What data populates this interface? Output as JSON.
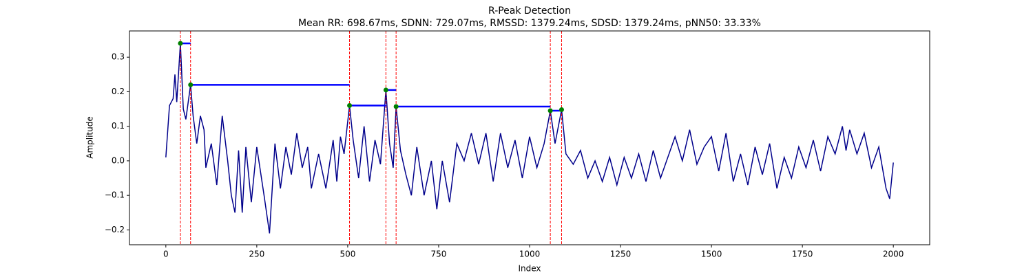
{
  "chart_data": {
    "type": "line",
    "title": "R-Peak Detection",
    "subtitle": "Mean RR: 698.67ms, SDNN: 729.07ms, RMSSD: 1379.24ms, SDSD: 1379.24ms, pNN50: 33.33%",
    "xlabel": "Index",
    "ylabel": "Amplitude",
    "xlim": [
      -100,
      2100
    ],
    "ylim": [
      -0.243,
      0.376
    ],
    "xticks": [
      0,
      250,
      500,
      750,
      1000,
      1250,
      1500,
      1750,
      2000
    ],
    "yticks": [
      {
        "value": -0.2,
        "label": "−0.2"
      },
      {
        "value": -0.1,
        "label": "−0.1"
      },
      {
        "value": 0,
        "label": "0.0"
      },
      {
        "value": 0.1,
        "label": "0.1"
      },
      {
        "value": 0.2,
        "label": "0.2"
      },
      {
        "value": 0.3,
        "label": "0.3"
      }
    ],
    "signal": {
      "color": "#00008b",
      "x": [
        0,
        10,
        20,
        25,
        30,
        40,
        48,
        55,
        68,
        75,
        85,
        95,
        105,
        110,
        125,
        140,
        155,
        170,
        180,
        190,
        200,
        210,
        220,
        235,
        250,
        270,
        285,
        300,
        315,
        330,
        345,
        360,
        375,
        390,
        400,
        420,
        440,
        460,
        470,
        480,
        490,
        505,
        515,
        530,
        545,
        560,
        575,
        590,
        605,
        615,
        625,
        633,
        645,
        660,
        675,
        690,
        710,
        730,
        745,
        760,
        780,
        800,
        820,
        840,
        860,
        880,
        900,
        920,
        940,
        960,
        980,
        1000,
        1020,
        1040,
        1057,
        1070,
        1088,
        1100,
        1120,
        1140,
        1160,
        1180,
        1200,
        1220,
        1240,
        1260,
        1280,
        1300,
        1320,
        1340,
        1360,
        1380,
        1400,
        1420,
        1440,
        1460,
        1480,
        1500,
        1520,
        1540,
        1560,
        1580,
        1600,
        1620,
        1640,
        1660,
        1680,
        1700,
        1720,
        1740,
        1760,
        1780,
        1800,
        1820,
        1840,
        1860,
        1870,
        1880,
        1900,
        1920,
        1940,
        1960,
        1980,
        1990,
        2000
      ],
      "values": [
        0.01,
        0.16,
        0.18,
        0.25,
        0.17,
        0.34,
        0.15,
        0.12,
        0.22,
        0.13,
        0.05,
        0.13,
        0.09,
        -0.02,
        0.05,
        -0.07,
        0.13,
        0.0,
        -0.1,
        -0.15,
        0.03,
        -0.15,
        0.04,
        -0.12,
        0.04,
        -0.1,
        -0.21,
        0.05,
        -0.08,
        0.04,
        -0.04,
        0.08,
        -0.02,
        0.04,
        -0.08,
        0.02,
        -0.08,
        0.06,
        -0.06,
        0.07,
        0.02,
        0.16,
        0.06,
        -0.05,
        0.1,
        -0.06,
        0.06,
        -0.01,
        0.205,
        0.05,
        -0.02,
        0.157,
        0.03,
        -0.04,
        -0.1,
        0.04,
        -0.1,
        0.0,
        -0.14,
        0.0,
        -0.12,
        0.05,
        0.0,
        0.08,
        -0.01,
        0.08,
        -0.06,
        0.08,
        -0.02,
        0.06,
        -0.05,
        0.07,
        -0.02,
        0.05,
        0.145,
        0.05,
        0.148,
        0.02,
        -0.01,
        0.03,
        -0.05,
        0.0,
        -0.06,
        0.01,
        -0.07,
        0.01,
        -0.05,
        0.02,
        -0.06,
        0.03,
        -0.05,
        0.01,
        0.07,
        0.0,
        0.09,
        -0.01,
        0.04,
        0.07,
        -0.03,
        0.08,
        -0.06,
        0.02,
        -0.07,
        0.04,
        -0.04,
        0.05,
        -0.08,
        0.01,
        -0.05,
        0.04,
        -0.02,
        0.06,
        -0.03,
        0.07,
        0.02,
        0.1,
        0.03,
        0.09,
        0.02,
        0.08,
        -0.02,
        0.04,
        -0.08,
        -0.11,
        -0.005
      ]
    },
    "peaks": {
      "color": "#008000",
      "line_color": "#ff0000",
      "interval_color": "#0000ff",
      "x": [
        40,
        68,
        505,
        605,
        633,
        1057,
        1088
      ],
      "values": [
        0.34,
        0.22,
        0.16,
        0.205,
        0.157,
        0.145,
        0.148
      ]
    }
  }
}
